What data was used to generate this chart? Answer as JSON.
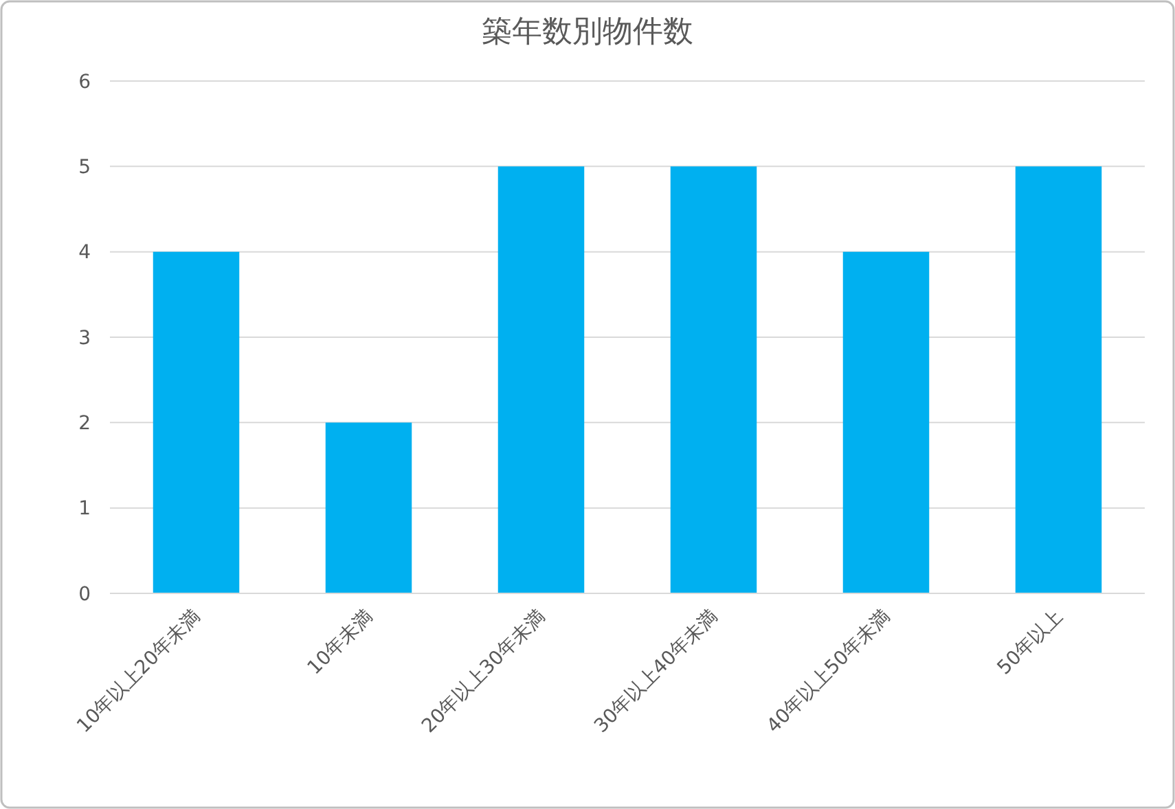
{
  "chart_data": {
    "type": "bar",
    "title": "築年数別物件数",
    "categories": [
      "10年以上20年未満",
      "10年未満",
      "20年以上30年未満",
      "30年以上40年未満",
      "40年以上50年未満",
      "50年以上"
    ],
    "values": [
      4,
      2,
      5,
      5,
      4,
      5
    ],
    "color": "#00b0f0",
    "ylim": [
      0,
      6
    ],
    "yticks": [
      0,
      1,
      2,
      3,
      4,
      5,
      6
    ],
    "grid": "y"
  }
}
